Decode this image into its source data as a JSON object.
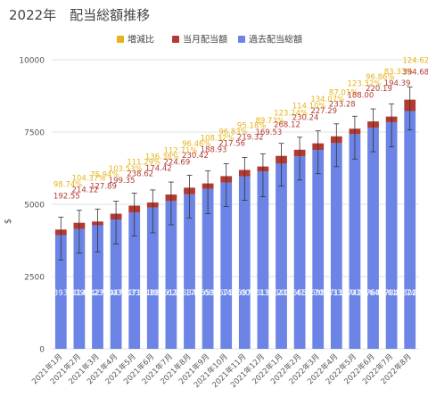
{
  "chart_data": {
    "type": "bar",
    "title": "2022年　配当総額推移",
    "xlabel": "",
    "ylabel": "$",
    "ylim": [
      0,
      10000
    ],
    "yticks": [
      "0",
      "2500",
      "5000",
      "7500",
      "10000"
    ],
    "grid": true,
    "legend_position": "top",
    "categories": [
      "2021年1月",
      "2021年2月",
      "2021年3月",
      "2021年4月",
      "2021年5月",
      "2021年6月",
      "2021年7月",
      "2021年8月",
      "2021年9月",
      "2021年10月",
      "2021年11月",
      "2021年12月",
      "2022年1月",
      "2022年2月",
      "2022年3月",
      "2022年4月",
      "2022年5月",
      "2022年6月",
      "2022年7月",
      "2022年8月"
    ],
    "series": [
      {
        "name": "過去配当総額",
        "color": "#6b84e6",
        "values": [
          3933.19,
          4146.23,
          4276.03,
          4475.33,
          4714.39,
          4889.62,
          5113.17,
          5344.68,
          5533.14,
          5757.0,
          5970.13,
          6139.23,
          6407.41,
          6657.7,
          6881.33,
          7118.03,
          7427.64,
          7647.61,
          7841.74,
          8226.42
        ],
        "labels": [
          "3933.19",
          "4146.23",
          "4276.03",
          "4475.33",
          "4714.39",
          "4889.62",
          "5113.17",
          "5344.68",
          "5533.14",
          "5757.00",
          "5970.13",
          "6139.23",
          "6407.41",
          "6657.70",
          "6881.33",
          "7118.03",
          "7427.64",
          "7647.61",
          "7841.74",
          "8226.42"
        ]
      },
      {
        "name": "当月配当額",
        "color": "#b33a32",
        "values": [
          192.55,
          214.12,
          127.89,
          199.35,
          238.62,
          174.42,
          224.69,
          230.42,
          188.93,
          217.56,
          219.32,
          169.53,
          268.12,
          230.24,
          227.29,
          233.28,
          188.0,
          220.19,
          194.39,
          394.68
        ],
        "labels": [
          "192.55",
          "214.12",
          "127.89",
          "199.35",
          "238.62",
          "174.42",
          "224.69",
          "230.42",
          "188.93",
          "217.56",
          "219.32",
          "169.53",
          "268.12",
          "230.24",
          "227.29",
          "233.28",
          "188.00",
          "220.19",
          "194.39",
          "394.68"
        ]
      },
      {
        "name": "増減比",
        "color": "#e5b318",
        "labels": [
          "98.74%",
          "104.37%",
          "75.94%",
          "103.53%",
          "111.29%",
          "136.38%",
          "112.71%",
          "96.46%",
          "108.32%",
          "96.83%",
          "95.18%",
          "89.73%",
          "123.24%",
          "114.10%",
          "134.07%",
          "87.01%",
          "123.32%",
          "96.86%",
          "83.33%",
          "124.62%"
        ]
      }
    ]
  },
  "legend": {
    "item1": "増減比",
    "item2": "当月配当額",
    "item3": "過去配当総額"
  },
  "colors": {
    "past_total": "#6b84e6",
    "monthly": "#b33a32",
    "ratio": "#e5b318",
    "grid": "#e0e0e0",
    "axis_text": "#555555"
  }
}
